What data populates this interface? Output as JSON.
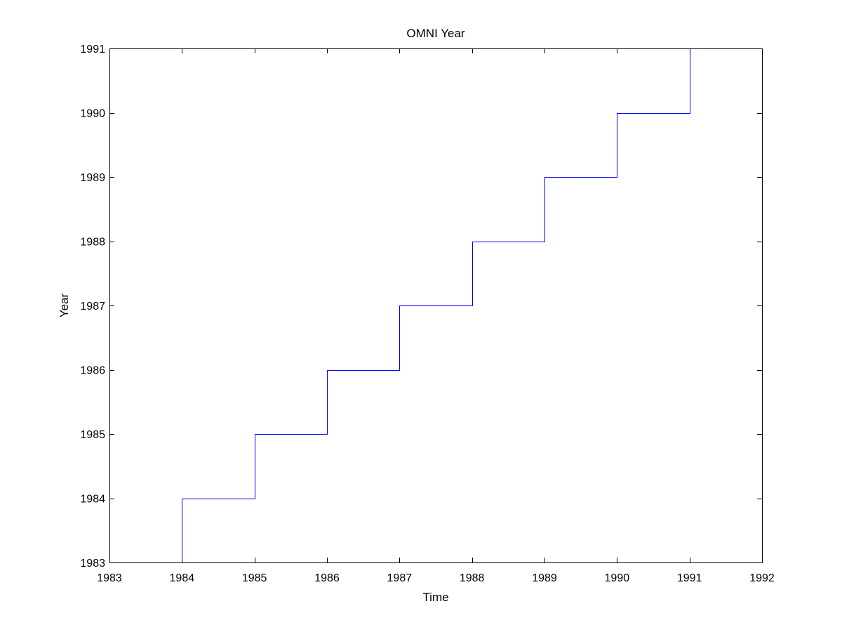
{
  "chart_data": {
    "type": "line",
    "title": "OMNI Year",
    "xlabel": "Time",
    "ylabel": "Year",
    "xlim": [
      1983,
      1992
    ],
    "ylim": [
      1983,
      1991
    ],
    "xticks": [
      1983,
      1984,
      1985,
      1986,
      1987,
      1988,
      1989,
      1990,
      1991,
      1992
    ],
    "yticks": [
      1983,
      1984,
      1985,
      1986,
      1987,
      1988,
      1989,
      1990,
      1991
    ],
    "xtick_labels": [
      "1983",
      "1984",
      "1985",
      "1986",
      "1987",
      "1988",
      "1989",
      "1990",
      "1991",
      "1992"
    ],
    "ytick_labels": [
      "1983",
      "1984",
      "1985",
      "1986",
      "1987",
      "1988",
      "1989",
      "1990",
      "1991"
    ],
    "grid": false,
    "legend": "none",
    "series": [
      {
        "color": "#0000ff",
        "step": "post",
        "x": [
          1984,
          1985,
          1986,
          1987,
          1988,
          1989,
          1990,
          1991
        ],
        "y": [
          1984,
          1985,
          1986,
          1987,
          1988,
          1989,
          1990,
          1991
        ]
      }
    ]
  }
}
